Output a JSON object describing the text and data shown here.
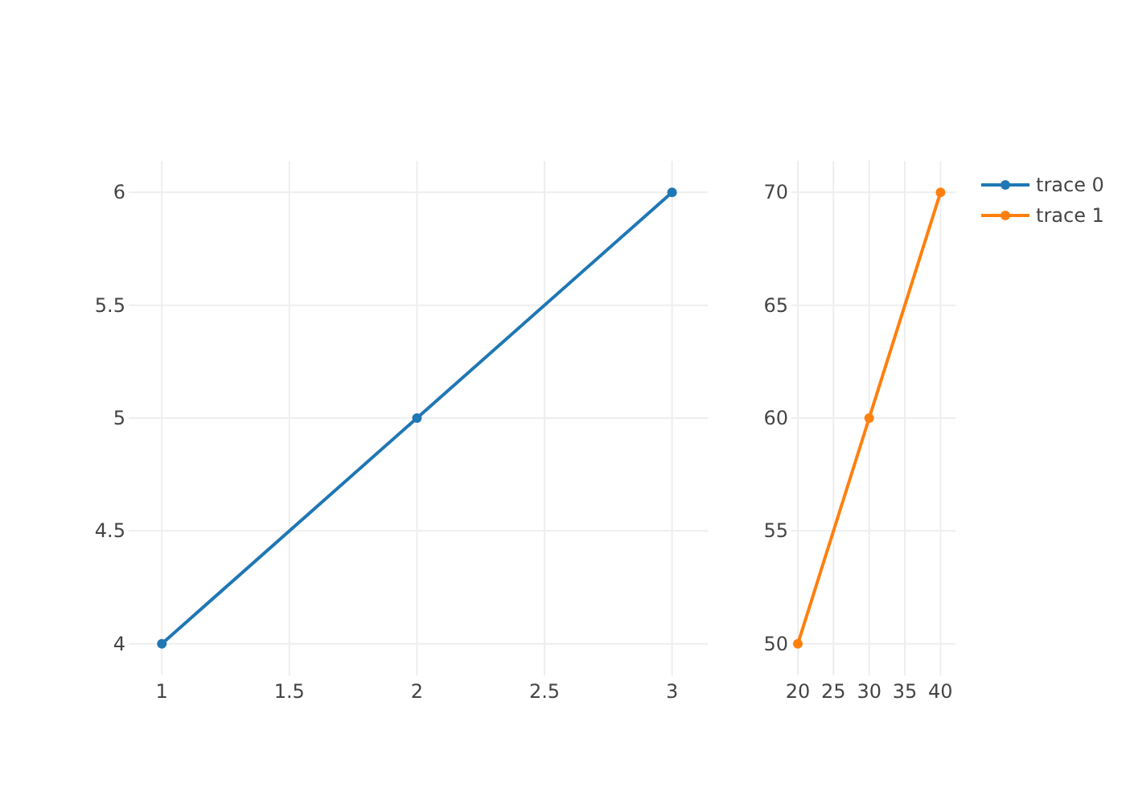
{
  "chart_data": [
    {
      "type": "line",
      "x": [
        1,
        2,
        3
      ],
      "series": [
        {
          "name": "trace 0",
          "color": "#1f77b4",
          "values": [
            4,
            5,
            6
          ]
        }
      ],
      "xlim": [
        0.87,
        3.14
      ],
      "xticks": [
        1,
        1.5,
        2,
        2.5,
        3
      ],
      "ylim": [
        3.86,
        6.14
      ],
      "yticks": [
        4,
        4.5,
        5,
        5.5,
        6
      ],
      "grid": true,
      "marker": "circle",
      "line_style": "solid"
    },
    {
      "type": "line",
      "x": [
        20,
        30,
        40
      ],
      "series": [
        {
          "name": "trace 1",
          "color": "#ff7f0e",
          "values": [
            50,
            60,
            70
          ]
        }
      ],
      "xlim": [
        19.1,
        42.1
      ],
      "xticks": [
        20,
        25,
        30,
        35,
        40
      ],
      "ylim": [
        48.6,
        71.4
      ],
      "yticks": [
        50,
        55,
        60,
        65,
        70
      ],
      "grid": true,
      "marker": "circle",
      "line_style": "solid",
      "legend": "right"
    }
  ]
}
